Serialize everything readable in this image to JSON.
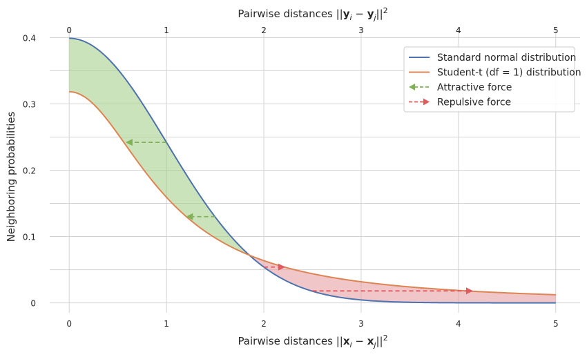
{
  "chart_data": {
    "type": "line",
    "xlabel": "Pairwise distances  ||x_i − x_j||²",
    "xlabel_top": "Pairwise distances ||y_i − y_j||²",
    "ylabel": "Neighboring probabilities",
    "xlim": [
      -0.2,
      5.25
    ],
    "ylim": [
      -0.015,
      0.415
    ],
    "x_ticks": [
      0,
      1,
      2,
      3,
      4,
      5
    ],
    "x_tick_labels": [
      "0",
      "1",
      "2",
      "3",
      "4",
      "5"
    ],
    "x_top_ticks": [
      0,
      1,
      2,
      3,
      4,
      5
    ],
    "x_top_tick_labels": [
      "0",
      "1",
      "2",
      "3",
      "4",
      "5"
    ],
    "y_ticks": [
      0,
      0.1,
      0.2,
      0.3,
      0.4
    ],
    "y_tick_labels": [
      "0",
      "0.1",
      "0.2",
      "0.3",
      "0.4"
    ],
    "y_grid_minor": [
      0.05,
      0.15,
      0.25,
      0.35
    ],
    "grid": true,
    "legend_position": "top-right",
    "series": [
      {
        "name": "Standard normal distribution",
        "color": "#4c72b0",
        "x": [
          0,
          0.25,
          0.5,
          0.75,
          1.0,
          1.25,
          1.5,
          1.75,
          2.0,
          2.25,
          2.5,
          2.75,
          3.0,
          3.25,
          3.5,
          3.75,
          4.0,
          4.25,
          4.5,
          4.75,
          5.0
        ],
        "y": [
          0.399,
          0.387,
          0.352,
          0.301,
          0.242,
          0.183,
          0.13,
          0.086,
          0.054,
          0.032,
          0.018,
          0.009,
          0.004,
          0.002,
          0.001,
          0.0,
          0.0,
          0.0,
          0.0,
          0.0,
          0.0
        ]
      },
      {
        "name": "Student-t (df = 1) distribution",
        "color": "#dd8452",
        "x": [
          0,
          0.25,
          0.5,
          0.75,
          1.0,
          1.25,
          1.5,
          1.75,
          2.0,
          2.25,
          2.5,
          2.75,
          3.0,
          3.25,
          3.5,
          3.75,
          4.0,
          4.25,
          4.5,
          4.75,
          5.0
        ],
        "y": [
          0.318,
          0.3,
          0.255,
          0.204,
          0.159,
          0.124,
          0.098,
          0.078,
          0.064,
          0.053,
          0.044,
          0.037,
          0.032,
          0.027,
          0.024,
          0.021,
          0.019,
          0.017,
          0.015,
          0.014,
          0.012
        ]
      }
    ],
    "fill_regions": [
      {
        "between": [
          "Standard normal distribution",
          "Student-t (df = 1) distribution"
        ],
        "x_range": [
          0,
          1.82
        ],
        "color": "#a9d18e"
      },
      {
        "between": [
          "Standard normal distribution",
          "Student-t (df = 1) distribution"
        ],
        "x_range": [
          1.82,
          5.0
        ],
        "color": "#e8a0a4"
      }
    ],
    "arrows": [
      {
        "name": "Attractive force",
        "color": "#7fb356",
        "from": [
          1.0,
          0.242
        ],
        "to": [
          0.58,
          0.242
        ]
      },
      {
        "name": "Attractive force",
        "color": "#7fb356",
        "from": [
          1.5,
          0.13
        ],
        "to": [
          1.2,
          0.13
        ]
      },
      {
        "name": "Repulsive force",
        "color": "#e05a5e",
        "from": [
          2.0,
          0.054
        ],
        "to": [
          2.22,
          0.054
        ]
      },
      {
        "name": "Repulsive force",
        "color": "#e05a5e",
        "from": [
          2.5,
          0.018
        ],
        "to": [
          4.15,
          0.018
        ]
      }
    ],
    "legend": [
      {
        "label": "Standard normal distribution",
        "style": "line",
        "color": "#4c72b0"
      },
      {
        "label": "Student-t (df = 1) distribution",
        "style": "line",
        "color": "#dd8452"
      },
      {
        "label": "Attractive force",
        "style": "dashed-arrow-left",
        "color": "#7fb356"
      },
      {
        "label": "Repulsive force",
        "style": "dashed-arrow-right",
        "color": "#e05a5e"
      }
    ]
  }
}
